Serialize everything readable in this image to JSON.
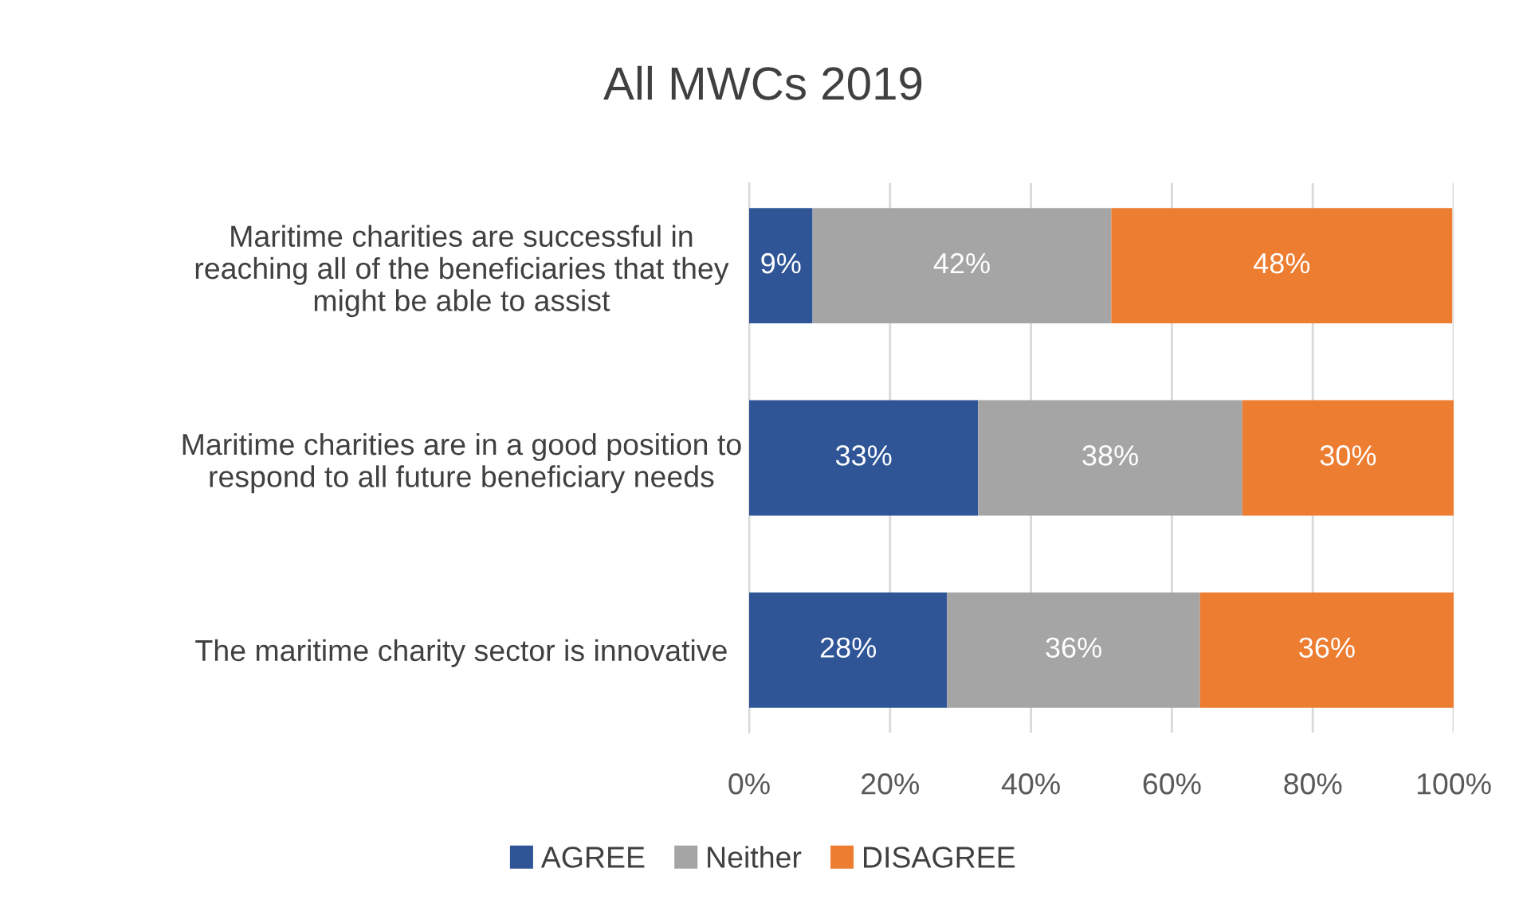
{
  "chart_data": {
    "type": "bar",
    "orientation": "horizontal",
    "stacked": true,
    "title": "All MWCs 2019",
    "categories": [
      "Maritime charities are successful in\nreaching all of the beneficiaries that they\nmight be able to assist",
      "Maritime charities are in a good position to\nrespond to all future beneficiary needs",
      "The maritime charity sector is innovative"
    ],
    "series": [
      {
        "name": "AGREE",
        "color": "#2f5597",
        "values": [
          9.0,
          32.5,
          28.1
        ],
        "value_labels": [
          "9%",
          "33%",
          "28%"
        ]
      },
      {
        "name": "Neither",
        "color": "#a5a5a5",
        "values": [
          42.4,
          37.5,
          35.9
        ],
        "value_labels": [
          "42%",
          "38%",
          "36%"
        ]
      },
      {
        "name": "DISAGREE",
        "color": "#ed7d31",
        "values": [
          48.4,
          30.0,
          36.0
        ],
        "value_labels": [
          "48%",
          "30%",
          "36%"
        ]
      }
    ],
    "xlim": [
      0,
      100
    ],
    "xticks": [
      {
        "value": 0,
        "label": "0%"
      },
      {
        "value": 20,
        "label": "20%"
      },
      {
        "value": 40,
        "label": "40%"
      },
      {
        "value": 60,
        "label": "60%"
      },
      {
        "value": 80,
        "label": "80%"
      },
      {
        "value": 100,
        "label": "100%"
      }
    ],
    "grid": "x",
    "legend": "bottom"
  }
}
